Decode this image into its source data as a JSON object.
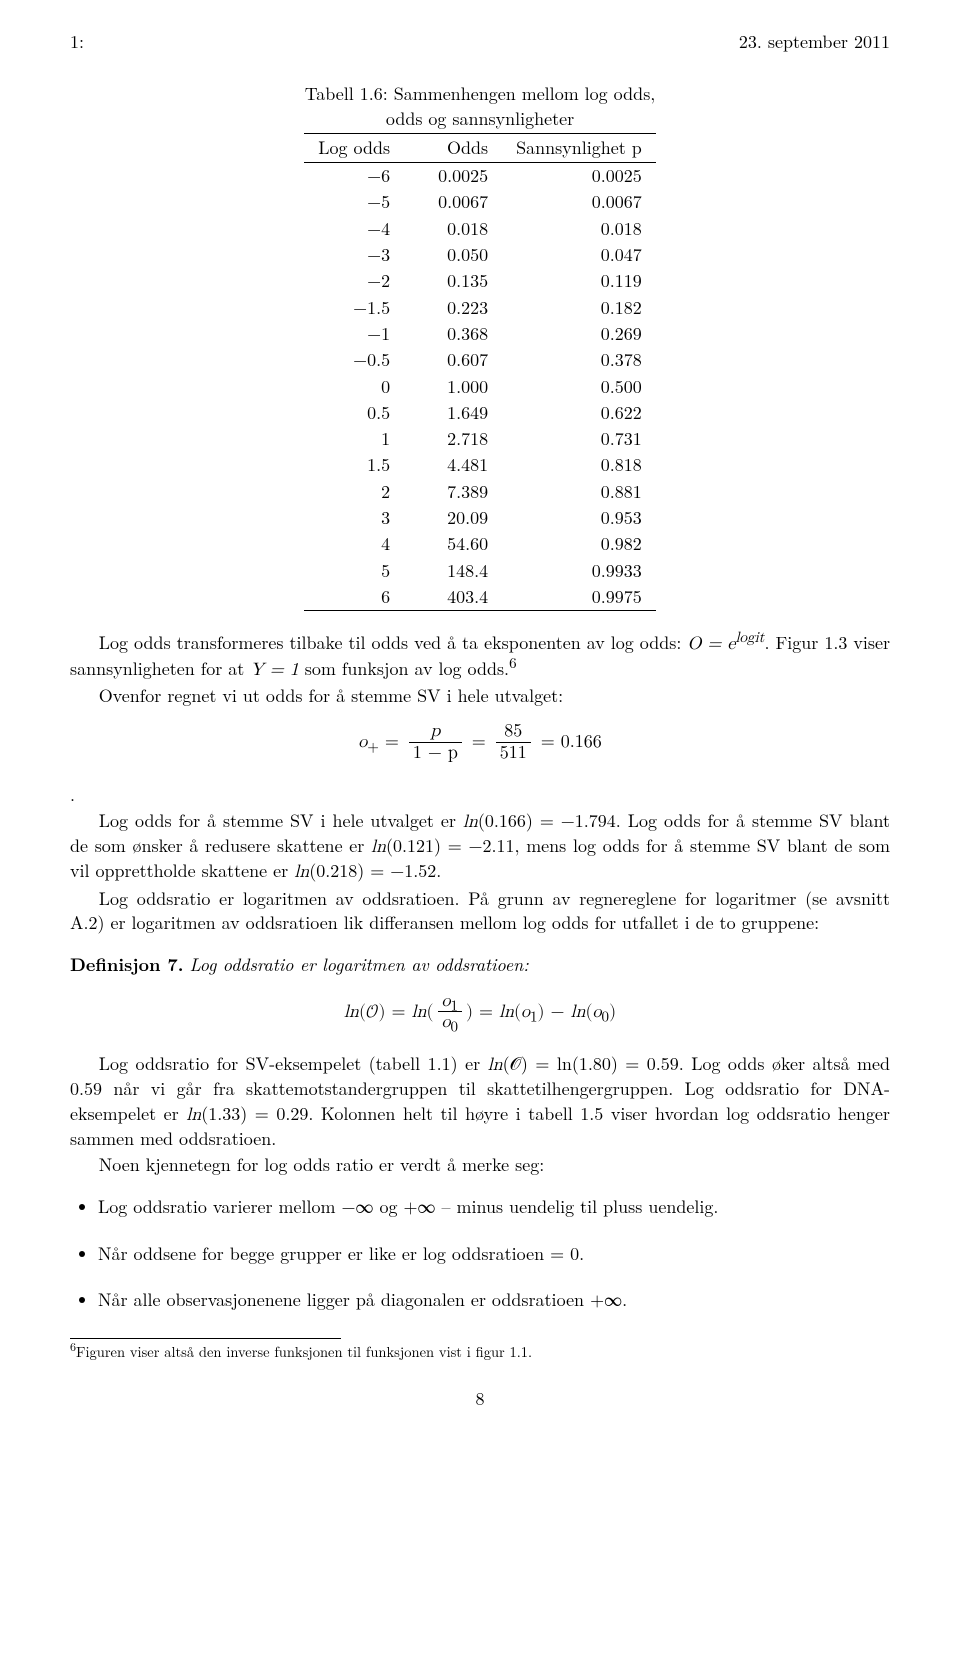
{
  "header": {
    "left": "1:",
    "right": "23. september 2011"
  },
  "table": {
    "caption": "Tabell 1.6: Sammenhengen mellom log odds, odds og sannsynligheter",
    "columns": [
      "Log odds",
      "Odds",
      "Sannsynlighet p"
    ],
    "rows": [
      [
        "−6",
        "0.0025",
        "0.0025"
      ],
      [
        "−5",
        "0.0067",
        "0.0067"
      ],
      [
        "−4",
        "0.018",
        "0.018"
      ],
      [
        "−3",
        "0.050",
        "0.047"
      ],
      [
        "−2",
        "0.135",
        "0.119"
      ],
      [
        "−1.5",
        "0.223",
        "0.182"
      ],
      [
        "−1",
        "0.368",
        "0.269"
      ],
      [
        "−0.5",
        "0.607",
        "0.378"
      ],
      [
        "0",
        "1.000",
        "0.500"
      ],
      [
        "0.5",
        "1.649",
        "0.622"
      ],
      [
        "1",
        "2.718",
        "0.731"
      ],
      [
        "1.5",
        "4.481",
        "0.818"
      ],
      [
        "2",
        "7.389",
        "0.881"
      ],
      [
        "3",
        "20.09",
        "0.953"
      ],
      [
        "4",
        "54.60",
        "0.982"
      ],
      [
        "5",
        "148.4",
        "0.9933"
      ],
      [
        "6",
        "403.4",
        "0.9975"
      ]
    ]
  },
  "para1a": "Log odds transformeres tilbake til odds ved å ta eksponenten av log odds: ",
  "para1c": "Figur 1.3 viser sannsynligheten for at ",
  "para1e": " som funksjon av log odds.",
  "para1f": "Ovenfor regnet vi ut odds for å stemme SV i hele utvalget:",
  "eq1": {
    "o_plus": "o",
    "p": "p",
    "oneminus": "1 − p",
    "num": "85",
    "den": "511",
    "val": "= 0.166"
  },
  "para2": "Log odds for å stemme SV i hele utvalget er ln(0.166) = −1.794. Log odds for å stemme SV blant de som ønsker å redusere skattene er ln(0.121) = −2.11, mens log odds for å stemme SV blant de som vil opprettholde skattene er ln(0.218) = −1.52.",
  "para3": "Log oddsratio er logaritmen av oddsratioen. På grunn av regnereglene for logaritmer (se avsnitt A.2) er logaritmen av oddsratioen lik differansen mellom log odds for utfallet i de to gruppene:",
  "defn": {
    "label": "Definisjon 7.",
    "text": "Log oddsratio er logaritmen av oddsratioen:"
  },
  "eq2": {
    "lhs": "ln(𝒪) = ln(",
    "num": "o",
    "sub1": "1",
    "den": "o",
    "sub0": "0",
    "mid": ") = ln(o",
    "end": ") − ln(o",
    "close": ")"
  },
  "para4": "Log oddsratio for SV-eksempelet (tabell 1.1) er ln(𝒪) = ln(1.80) = 0.59. Log odds øker altså med 0.59 når vi går fra skattemotstandergruppen til skattetilhengergruppen. Log oddsratio for DNA-eksempelet er ln(1.33) = 0.29. Kolonnen helt til høyre i tabell 1.5 viser hvordan log oddsratio henger sammen med oddsratioen.",
  "para5": "Noen kjennetegn for log odds ratio er verdt å merke seg:",
  "bullets": [
    "Log oddsratio varierer mellom −∞ og +∞ – minus uendelig til pluss uendelig.",
    "Når oddsene for begge grupper er like er log oddsratioen = 0.",
    "Når alle observasjonenene ligger på diagonalen er oddsratioen +∞."
  ],
  "footnote": {
    "num": "6",
    "text": "Figuren viser altså den inverse funksjonen til funksjonen vist i figur 1.1."
  },
  "pagenum": "8"
}
